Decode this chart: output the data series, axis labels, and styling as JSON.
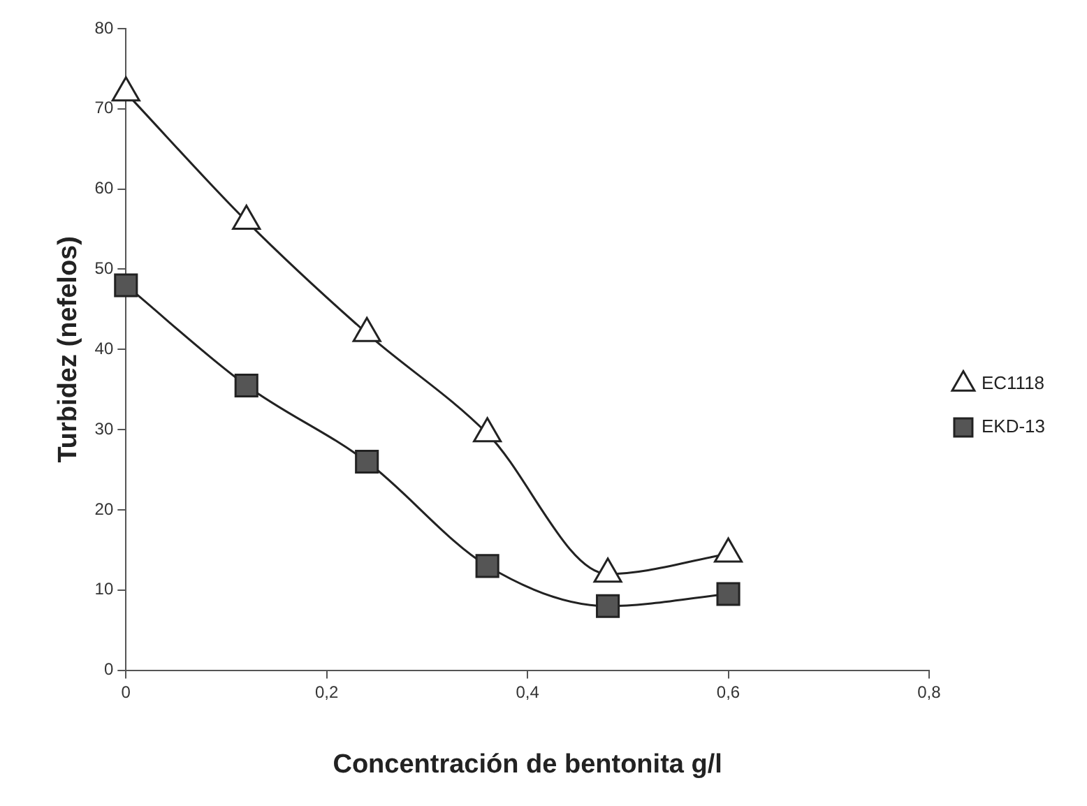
{
  "chart_data": {
    "type": "line",
    "xlabel": "Concentración de bentonita g/l",
    "ylabel": "Turbidez (nefelos)",
    "x": [
      0,
      0.12,
      0.24,
      0.36,
      0.48,
      0.6
    ],
    "series": [
      {
        "name": "EC1118",
        "color": "#222222",
        "marker": "triangle",
        "values": [
          72,
          56,
          42,
          29.5,
          12,
          14.5
        ]
      },
      {
        "name": "EKD-13",
        "color": "#222222",
        "marker": "square",
        "values": [
          48,
          35.5,
          26,
          13,
          8,
          9.5
        ]
      }
    ],
    "xlim": [
      0,
      0.8
    ],
    "xticks": [
      0,
      {
        "value": 0.2,
        "label": "0,2"
      },
      {
        "value": 0.4,
        "label": "0,4"
      },
      {
        "value": 0.6,
        "label": "0,6"
      },
      {
        "value": 0.8,
        "label": "0,8"
      }
    ],
    "ylim": [
      0,
      80
    ],
    "yticks": [
      0,
      10,
      20,
      30,
      40,
      50,
      60,
      70,
      80
    ],
    "grid": false,
    "legend": "right"
  }
}
